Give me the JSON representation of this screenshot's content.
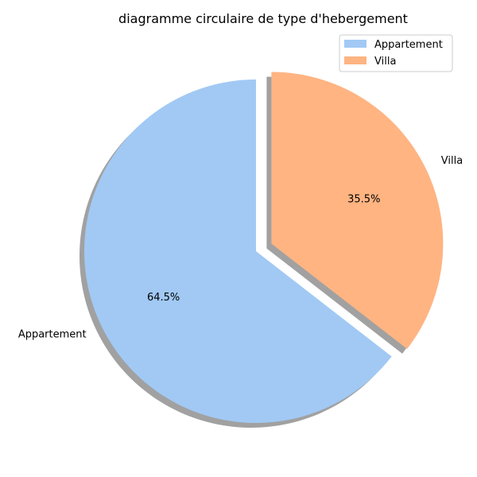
{
  "chart_data": {
    "type": "pie",
    "title": "diagramme circulaire de type d'hebergement",
    "labels": [
      "Appartement",
      "Villa"
    ],
    "values": [
      64.5,
      35.5
    ],
    "percent_labels": [
      "64.5%",
      "35.5%"
    ],
    "colors": [
      "#a1c9f4",
      "#ffb482"
    ],
    "explode": [
      0,
      0.1
    ],
    "start_angle_deg": 90,
    "direction": "counterclockwise",
    "shadow": true,
    "legend_position": "upper-right",
    "legend": [
      "Appartement",
      "Villa"
    ]
  }
}
